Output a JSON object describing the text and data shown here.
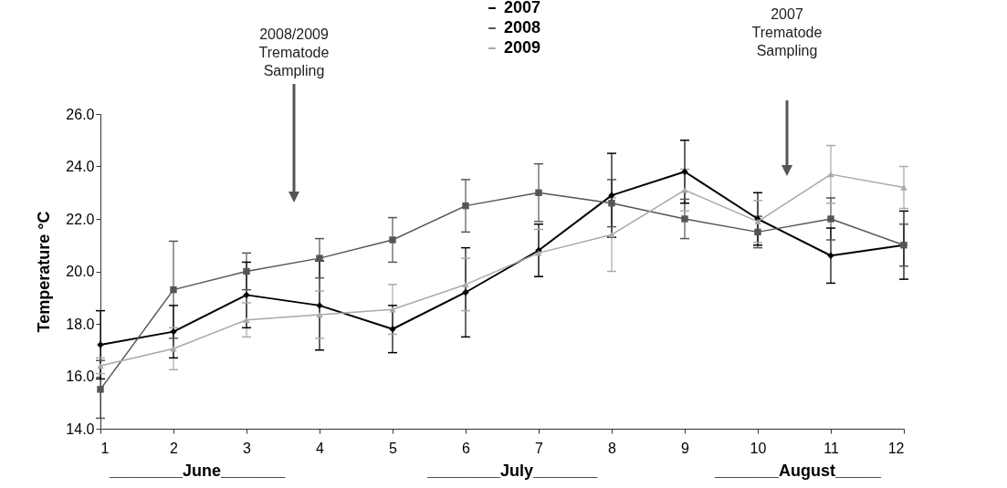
{
  "chart_data": {
    "type": "line",
    "ylabel": "Temperature °C",
    "x": [
      1,
      2,
      3,
      4,
      5,
      6,
      7,
      8,
      9,
      10,
      11,
      12
    ],
    "xlim": [
      1,
      12
    ],
    "xticks": [
      1,
      2,
      3,
      4,
      5,
      6,
      7,
      8,
      9,
      10,
      11,
      12
    ],
    "ylim": [
      14,
      26
    ],
    "yticks": [
      {
        "value": 14,
        "label": "14.0"
      },
      {
        "value": 16,
        "label": "16.0"
      },
      {
        "value": 18,
        "label": "18.0"
      },
      {
        "value": 20,
        "label": "20.0"
      },
      {
        "value": 22,
        "label": "22.0"
      },
      {
        "value": 24,
        "label": "24.0"
      },
      {
        "value": 26,
        "label": "26.0"
      }
    ],
    "grid": false,
    "legend": "top",
    "series": [
      {
        "name": "2007",
        "color": "#000000",
        "marker": "diamond",
        "values": [
          17.2,
          17.7,
          19.1,
          18.7,
          17.8,
          19.2,
          20.8,
          22.9,
          23.8,
          22.0,
          20.6,
          21.0
        ],
        "errors": [
          1.3,
          1.0,
          1.25,
          1.7,
          0.9,
          1.7,
          1.0,
          1.6,
          1.2,
          1.0,
          1.05,
          1.3
        ]
      },
      {
        "name": "2008",
        "color": "#555555",
        "marker": "square",
        "values": [
          15.5,
          19.3,
          20.0,
          20.5,
          21.2,
          22.5,
          23.0,
          22.6,
          22.0,
          21.5,
          22.0,
          21.0
        ],
        "errors": [
          1.1,
          1.85,
          0.7,
          0.75,
          0.85,
          1.0,
          1.1,
          0.9,
          0.75,
          0.6,
          0.8,
          0.8
        ]
      },
      {
        "name": "2009",
        "color": "#a8a8a8",
        "marker": "triangle",
        "values": [
          16.4,
          17.05,
          18.15,
          18.35,
          18.55,
          19.5,
          20.7,
          21.4,
          23.1,
          21.9,
          23.7,
          23.2
        ],
        "errors": [
          0.3,
          0.8,
          0.65,
          0.9,
          0.95,
          1.0,
          0.9,
          1.4,
          0.8,
          0.8,
          1.1,
          0.8
        ]
      }
    ],
    "annotations": [
      "2008/2009 Trematode Sampling",
      "2007 Trematode Sampling",
      "________June_______",
      "________July_______",
      "_______August_____"
    ]
  }
}
